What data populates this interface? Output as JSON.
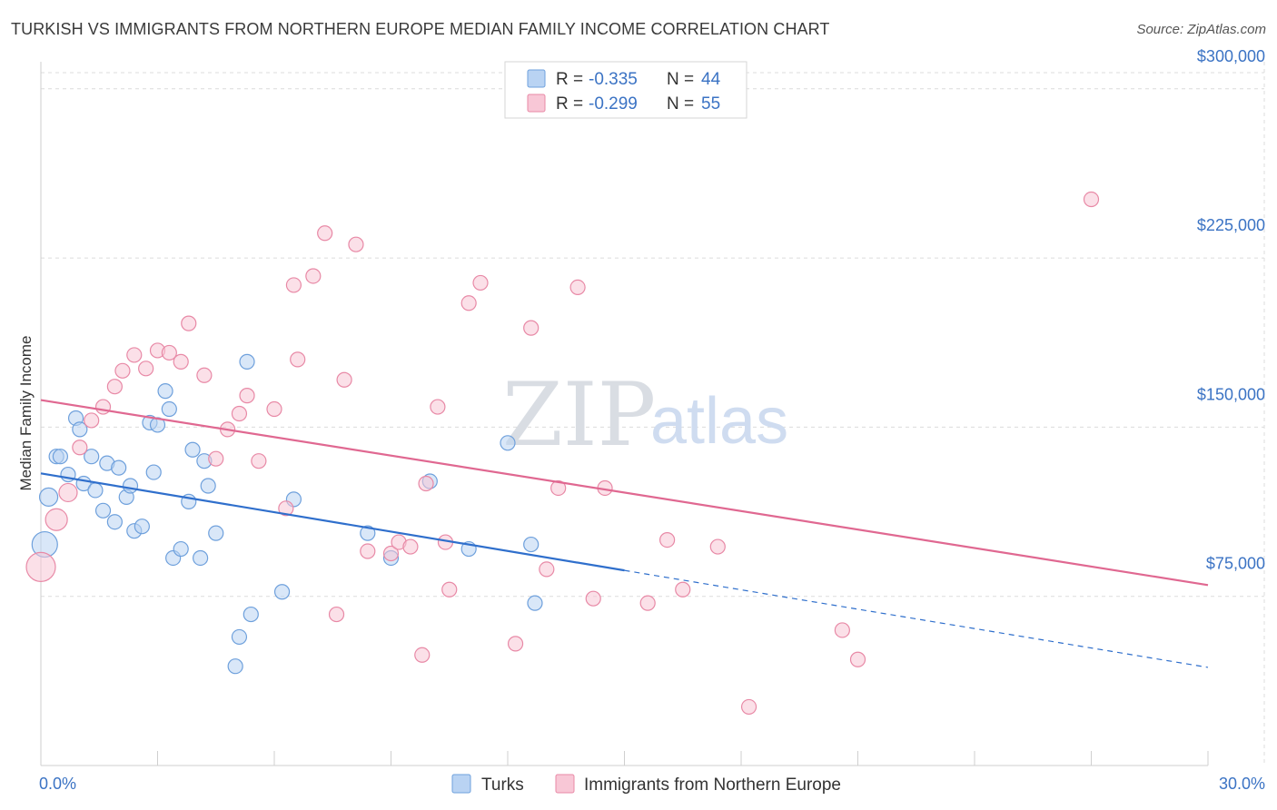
{
  "header": {
    "title": "TURKISH VS IMMIGRANTS FROM NORTHERN EUROPE MEDIAN FAMILY INCOME CORRELATION CHART",
    "source": "Source: ZipAtlas.com"
  },
  "watermark": {
    "zip": "ZIP",
    "atlas": "atlas"
  },
  "legend": {
    "r_label": "R =",
    "n_label": "N =",
    "entries": [
      {
        "r": "-0.335",
        "n": "44",
        "color": "#a9c8f0"
      },
      {
        "r": "-0.299",
        "n": "55",
        "color": "#f6b8cb"
      }
    ]
  },
  "bottom_legend": [
    "Turks",
    "Immigrants from Northern Europe"
  ],
  "chart_data": {
    "type": "scatter",
    "xlabel": "",
    "ylabel": "Median Family Income",
    "xlim": [
      0,
      30
    ],
    "ylim": [
      0,
      312000
    ],
    "x_tick_labels": [
      "0.0%",
      "30.0%"
    ],
    "y_ticks": [
      {
        "value": 75000,
        "label": "$75,000"
      },
      {
        "value": 150000,
        "label": "$150,000"
      },
      {
        "value": 225000,
        "label": "$225,000"
      },
      {
        "value": 300000,
        "label": "$300,000"
      }
    ],
    "grid": true,
    "legend_position": "top-center",
    "series": [
      {
        "name": "Turks",
        "color": "#6ea0dc",
        "fill": "#b9d3f3",
        "trend": {
          "x0": 0,
          "y0": 129500,
          "x1": 15,
          "y1": 86500,
          "dash_to_x": 30,
          "dash_to_y": 43500,
          "color": "#2f6fcc"
        },
        "points": [
          [
            0.1,
            98000,
            14
          ],
          [
            0.2,
            119000,
            10
          ],
          [
            0.4,
            137000,
            8
          ],
          [
            0.5,
            137000,
            8
          ],
          [
            0.7,
            129000,
            8
          ],
          [
            0.9,
            154000,
            8
          ],
          [
            1.0,
            149000,
            8
          ],
          [
            1.1,
            125000,
            8
          ],
          [
            1.3,
            137000,
            8
          ],
          [
            1.4,
            122000,
            8
          ],
          [
            1.6,
            113000,
            8
          ],
          [
            1.7,
            134000,
            8
          ],
          [
            1.9,
            108000,
            8
          ],
          [
            2.0,
            132000,
            8
          ],
          [
            2.2,
            119000,
            8
          ],
          [
            2.3,
            124000,
            8
          ],
          [
            2.4,
            104000,
            8
          ],
          [
            2.6,
            106000,
            8
          ],
          [
            2.8,
            152000,
            8
          ],
          [
            2.9,
            130000,
            8
          ],
          [
            3.0,
            151000,
            8
          ],
          [
            3.2,
            166000,
            8
          ],
          [
            3.3,
            158000,
            8
          ],
          [
            3.4,
            92000,
            8
          ],
          [
            3.6,
            96000,
            8
          ],
          [
            3.8,
            117000,
            8
          ],
          [
            3.9,
            140000,
            8
          ],
          [
            4.1,
            92000,
            8
          ],
          [
            4.2,
            135000,
            8
          ],
          [
            4.3,
            124000,
            8
          ],
          [
            4.5,
            103000,
            8
          ],
          [
            5.0,
            44000,
            8
          ],
          [
            5.1,
            57000,
            8
          ],
          [
            5.4,
            67000,
            8
          ],
          [
            5.3,
            179000,
            8
          ],
          [
            6.2,
            77000,
            8
          ],
          [
            6.5,
            118000,
            8
          ],
          [
            8.4,
            103000,
            8
          ],
          [
            9.0,
            92000,
            8
          ],
          [
            10.0,
            126000,
            8
          ],
          [
            11.0,
            96000,
            8
          ],
          [
            12.0,
            143000,
            8
          ],
          [
            12.6,
            98000,
            8
          ],
          [
            12.7,
            72000,
            8
          ]
        ]
      },
      {
        "name": "Immigrants from Northern Europe",
        "color": "#e889a6",
        "fill": "#f8c7d6",
        "trend": {
          "x0": 0,
          "y0": 162000,
          "x1": 30,
          "y1": 80000,
          "color": "#e06891"
        },
        "points": [
          [
            0.0,
            88000,
            16
          ],
          [
            0.4,
            109000,
            12
          ],
          [
            0.7,
            121000,
            10
          ],
          [
            1.0,
            141000,
            8
          ],
          [
            1.3,
            153000,
            8
          ],
          [
            1.6,
            159000,
            8
          ],
          [
            1.9,
            168000,
            8
          ],
          [
            2.1,
            175000,
            8
          ],
          [
            2.4,
            182000,
            8
          ],
          [
            2.7,
            176000,
            8
          ],
          [
            3.0,
            184000,
            8
          ],
          [
            3.3,
            183000,
            8
          ],
          [
            3.6,
            179000,
            8
          ],
          [
            3.8,
            196000,
            8
          ],
          [
            4.2,
            173000,
            8
          ],
          [
            4.5,
            136000,
            8
          ],
          [
            4.8,
            149000,
            8
          ],
          [
            5.1,
            156000,
            8
          ],
          [
            5.3,
            164000,
            8
          ],
          [
            5.6,
            135000,
            8
          ],
          [
            6.0,
            158000,
            8
          ],
          [
            6.3,
            114000,
            8
          ],
          [
            6.5,
            213000,
            8
          ],
          [
            6.6,
            180000,
            8
          ],
          [
            7.0,
            217000,
            8
          ],
          [
            7.3,
            236000,
            8
          ],
          [
            7.6,
            67000,
            8
          ],
          [
            7.8,
            171000,
            8
          ],
          [
            8.1,
            231000,
            8
          ],
          [
            8.4,
            95000,
            8
          ],
          [
            9.0,
            94000,
            8
          ],
          [
            9.2,
            99000,
            8
          ],
          [
            9.5,
            97000,
            8
          ],
          [
            9.8,
            49000,
            8
          ],
          [
            9.9,
            125000,
            8
          ],
          [
            10.2,
            159000,
            8
          ],
          [
            10.5,
            78000,
            8
          ],
          [
            11.0,
            205000,
            8
          ],
          [
            11.3,
            214000,
            8
          ],
          [
            12.2,
            54000,
            8
          ],
          [
            12.6,
            194000,
            8
          ],
          [
            13.0,
            87000,
            8
          ],
          [
            13.3,
            123000,
            8
          ],
          [
            13.8,
            212000,
            8
          ],
          [
            14.2,
            74000,
            8
          ],
          [
            14.5,
            123000,
            8
          ],
          [
            15.6,
            72000,
            8
          ],
          [
            16.1,
            100000,
            8
          ],
          [
            16.5,
            78000,
            8
          ],
          [
            17.4,
            97000,
            8
          ],
          [
            18.2,
            26000,
            8
          ],
          [
            20.6,
            60000,
            8
          ],
          [
            21.0,
            47000,
            8
          ],
          [
            27.0,
            251000,
            8
          ],
          [
            10.4,
            99000,
            8
          ]
        ]
      }
    ]
  }
}
